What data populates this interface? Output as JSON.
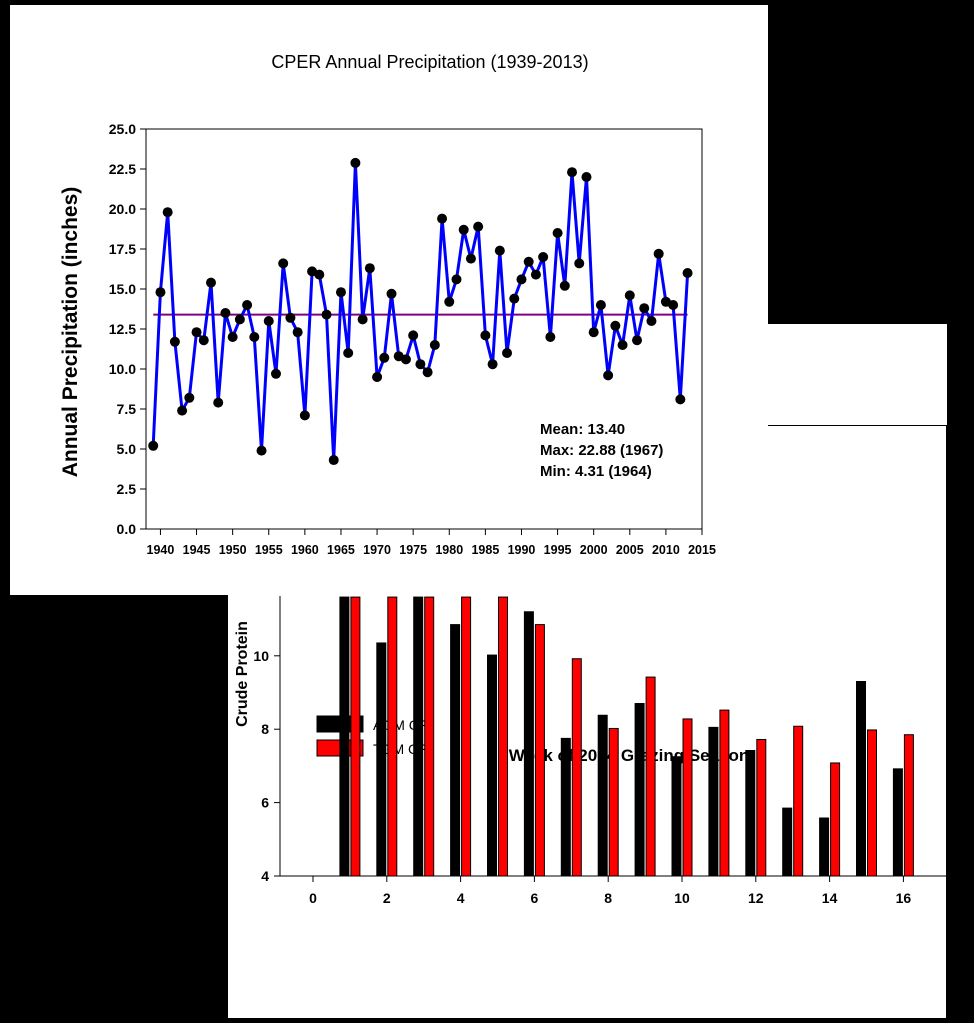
{
  "colors": {
    "line": "#0000ff",
    "mean_line": "#800080",
    "point": "#000000",
    "agm": "#000000",
    "tgm": "#ff0000"
  },
  "chart_data": [
    {
      "type": "line",
      "title": "CPER Annual Precipitation (1939-2013)",
      "xlabel": "",
      "ylabel": "Annual Precipitation (inches)",
      "xlim": [
        1938,
        2015
      ],
      "ylim": [
        0,
        25
      ],
      "xticks": [
        1940,
        1945,
        1950,
        1955,
        1960,
        1965,
        1970,
        1975,
        1980,
        1985,
        1990,
        1995,
        2000,
        2005,
        2010,
        2015
      ],
      "yticks": [
        "0.0",
        "2.5",
        "5.0",
        "7.5",
        "10.0",
        "12.5",
        "15.0",
        "17.5",
        "20.0",
        "22.5",
        "25.0"
      ],
      "mean": 13.4,
      "annotations": [
        "Mean: 13.40",
        "Max: 22.88 (1967)",
        "Min: 4.31 (1964)"
      ],
      "grid": false,
      "x": [
        1939,
        1940,
        1941,
        1942,
        1943,
        1944,
        1945,
        1946,
        1947,
        1948,
        1949,
        1950,
        1951,
        1952,
        1953,
        1954,
        1955,
        1956,
        1957,
        1958,
        1959,
        1960,
        1961,
        1962,
        1963,
        1964,
        1965,
        1966,
        1967,
        1968,
        1969,
        1970,
        1971,
        1972,
        1973,
        1974,
        1975,
        1976,
        1977,
        1978,
        1979,
        1980,
        1981,
        1982,
        1983,
        1984,
        1985,
        1986,
        1987,
        1988,
        1989,
        1990,
        1991,
        1992,
        1993,
        1994,
        1995,
        1996,
        1997,
        1998,
        1999,
        2000,
        2001,
        2002,
        2003,
        2004,
        2005,
        2006,
        2007,
        2008,
        2009,
        2010,
        2011,
        2012,
        2013
      ],
      "y": [
        5.2,
        14.8,
        19.8,
        11.7,
        7.4,
        8.2,
        12.3,
        11.8,
        15.4,
        7.9,
        13.5,
        12.0,
        13.1,
        14.0,
        12.0,
        4.9,
        13.0,
        9.7,
        16.6,
        13.2,
        12.3,
        7.1,
        16.1,
        15.9,
        13.4,
        4.31,
        14.8,
        11.0,
        22.88,
        13.1,
        16.3,
        9.5,
        10.7,
        14.7,
        10.8,
        10.6,
        12.1,
        10.3,
        9.8,
        11.5,
        19.4,
        14.2,
        15.6,
        18.7,
        16.9,
        18.9,
        12.1,
        10.3,
        17.4,
        11.0,
        14.4,
        15.6,
        16.7,
        15.9,
        17.0,
        12.0,
        18.5,
        15.2,
        22.3,
        16.6,
        22.0,
        12.3,
        14.0,
        9.6,
        12.7,
        11.5,
        14.6,
        11.8,
        13.8,
        13.0,
        17.2,
        14.2,
        14.0,
        8.1,
        16.0
      ]
    },
    {
      "type": "bar",
      "xlabel": "Week of 2014 Grazing Season",
      "ylabel": "Crude Protein",
      "xlim": [
        0,
        17
      ],
      "ylim": [
        4,
        11.5
      ],
      "xticks": [
        "0",
        "2",
        "4",
        "6",
        "8",
        "10",
        "12",
        "14",
        "16"
      ],
      "yticks": [
        "4",
        "6",
        "8",
        "10"
      ],
      "categories": [
        1,
        2,
        3,
        4,
        5,
        6,
        7,
        8,
        9,
        10,
        11,
        12,
        13,
        14,
        15,
        16
      ],
      "series": [
        {
          "name": "AGM CP",
          "values": [
            11.6,
            10.35,
            11.6,
            10.85,
            10.02,
            11.2,
            7.75,
            8.38,
            8.7,
            7.25,
            8.05,
            7.42,
            5.85,
            5.58,
            9.3,
            6.92
          ]
        },
        {
          "name": "TGM CP",
          "values": [
            11.6,
            11.6,
            11.6,
            11.6,
            11.6,
            10.85,
            9.92,
            8.02,
            9.42,
            8.28,
            8.52,
            7.72,
            8.08,
            7.08,
            7.98,
            7.85
          ]
        }
      ],
      "legend_position": "bottom-left"
    }
  ]
}
